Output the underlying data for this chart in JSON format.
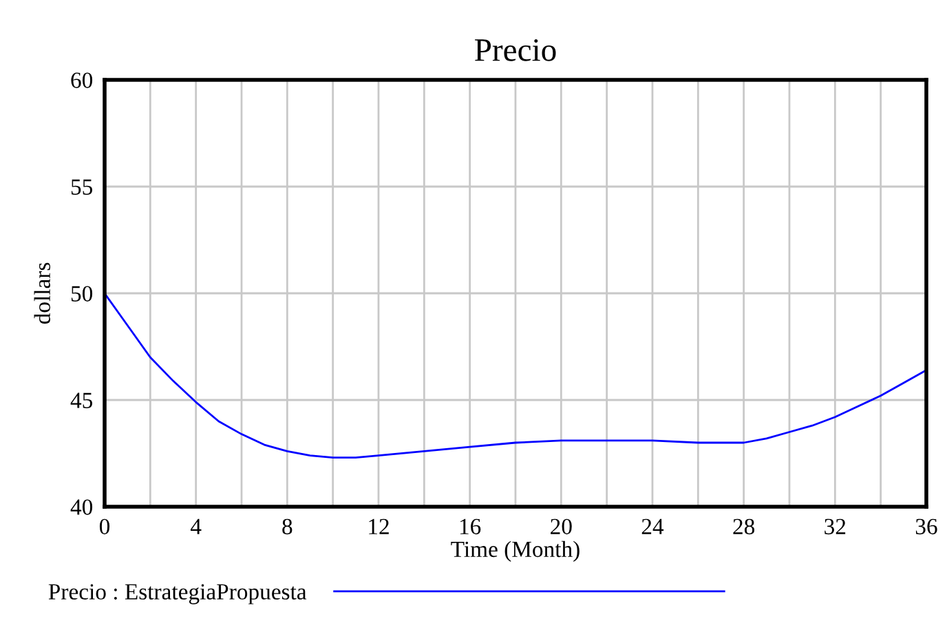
{
  "chart_data": {
    "type": "line",
    "title": "Precio",
    "xlabel": "Time (Month)",
    "ylabel": "dollars",
    "x": [
      0,
      1,
      2,
      3,
      4,
      5,
      6,
      7,
      8,
      9,
      10,
      11,
      12,
      14,
      16,
      18,
      20,
      22,
      24,
      26,
      28,
      29,
      30,
      31,
      32,
      33,
      34,
      35,
      36
    ],
    "series": [
      {
        "name": "Precio : EstrategiaPropuesta",
        "color": "#0000ff",
        "values": [
          50,
          48.5,
          47.0,
          45.9,
          44.9,
          44.0,
          43.4,
          42.9,
          42.6,
          42.4,
          42.3,
          42.3,
          42.4,
          42.6,
          42.8,
          43.0,
          43.1,
          43.1,
          43.1,
          43.0,
          43.0,
          43.2,
          43.5,
          43.8,
          44.2,
          44.7,
          45.2,
          45.8,
          46.4
        ]
      }
    ],
    "xlim": [
      0,
      36
    ],
    "ylim": [
      40,
      60
    ],
    "xticks": [
      0,
      {
        "value": 2,
        "label": null
      },
      4,
      {
        "value": 6,
        "label": null
      },
      8,
      {
        "value": 10,
        "label": null
      },
      12,
      {
        "value": 14,
        "label": null
      },
      16,
      {
        "value": 18,
        "label": null
      },
      20,
      {
        "value": 22,
        "label": null
      },
      24,
      {
        "value": 26,
        "label": null
      },
      28,
      {
        "value": 30,
        "label": null
      },
      32,
      {
        "value": 34,
        "label": null
      },
      36
    ],
    "yticks": [
      40,
      45,
      50,
      55,
      60
    ],
    "grid": true,
    "legend": "bottom",
    "marker": "none",
    "line_style": "solid"
  }
}
